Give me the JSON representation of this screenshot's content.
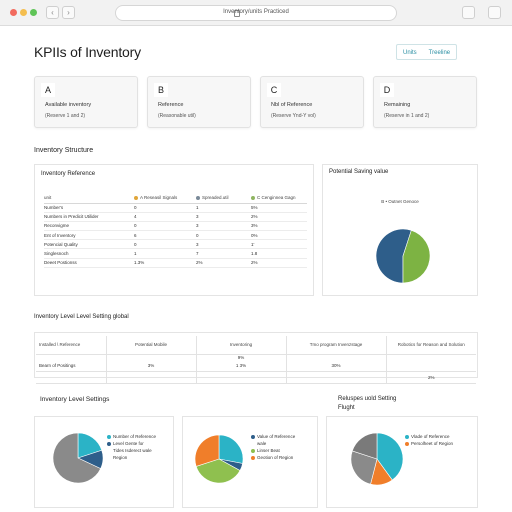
{
  "browser": {
    "url": "Inventory/units Practiced"
  },
  "header": {
    "title": "KPIIs of Inventory",
    "buttons": [
      "Units",
      "Treeline"
    ]
  },
  "kpi_cards": [
    {
      "letter": "A",
      "label": "Available inventory",
      "sub": "(Reserve 1 and 2)"
    },
    {
      "letter": "B",
      "label": "Reference",
      "sub": "(Reasonable util)"
    },
    {
      "letter": "C",
      "label": "Nbl of Reference",
      "sub": "(Reserve Ynd-Y vol)"
    },
    {
      "letter": "D",
      "label": "Remaining",
      "sub": "(Reserve in 1 and 2)"
    }
  ],
  "structure": {
    "section_title": "Inventory Structure",
    "table_panel_title": "Inventory Reference",
    "headers": [
      "unit",
      "A Reseasil Signals",
      "Spreaded.util",
      "C Cenginnea Gagn"
    ],
    "header_colors": [
      "",
      "#e0a63a",
      "#7a8a99",
      "#8fb560"
    ],
    "rows": [
      [
        "Number's",
        "0",
        "1",
        "5%"
      ],
      [
        "Numbers in Predicit Utilider",
        "4",
        "3",
        "2%"
      ],
      [
        "Reconvigme",
        "0",
        "3",
        "3%"
      ],
      [
        "Ent of Inventory",
        "6",
        "0",
        "0%"
      ],
      [
        "Potencial Quality",
        "0",
        "3",
        "1'"
      ],
      [
        "Singlesnoch",
        "1",
        "7",
        "1.8"
      ],
      [
        "Deeet Postionss",
        "1.3%",
        "2%",
        "2%"
      ]
    ],
    "pie_panel_title": "Potential Saving value",
    "pie_caption": "B • Outnet Genoce",
    "pie_colors": [
      "#2e5e8a",
      "#7db343"
    ]
  },
  "level_global": {
    "section_title": "Inventory Level Level Setting global",
    "headers": [
      "Installed \\ Reference",
      "Potential Mobile",
      "Inventoring",
      "Tmo program Invenzstage",
      "Robotics for Reason and Solution"
    ],
    "rows": [
      [
        "",
        "",
        "9%",
        "",
        ""
      ],
      [
        "Bearn of Positings",
        "3%",
        "1 3%",
        "30%",
        ""
      ],
      [
        "",
        "",
        "",
        "",
        "2%"
      ]
    ]
  },
  "level_settings": {
    "section_title": "Inventory Level Settings",
    "right_title_line1": "Reluspes uold Setting",
    "right_title_line2": "Flught",
    "pies": [
      {
        "colors": [
          "#2bb3c6",
          "#2e5e8a",
          "#8a8a8a"
        ],
        "legend": [
          "Number of Reference",
          "Level Gente for",
          "Tides Isderect wale",
          "Region"
        ]
      },
      {
        "colors": [
          "#2bb3c6",
          "#2e5e8a",
          "#8fc04f",
          "#f07e2a"
        ],
        "legend": [
          "Value of Reference",
          "wale",
          "Linser Beat",
          "Geotion of Region"
        ]
      },
      {
        "colors": [
          "#2bb3c6",
          "#f07e2a",
          "#8a8a8a",
          "#7a7a7a"
        ],
        "legend": [
          "Vlade of Reference",
          "Persolheet of Region"
        ]
      }
    ]
  },
  "chart_data": [
    {
      "type": "pie",
      "title": "Potential Saving value",
      "slices": [
        {
          "name": "",
          "value": 0.55
        },
        {
          "name": "",
          "value": 0.45
        }
      ]
    },
    {
      "type": "pie",
      "slices": [
        {
          "name": "Number of Reference",
          "value": 0.2
        },
        {
          "name": "Level Gente for",
          "value": 0.12
        },
        {
          "name": "Tides Isderect wale",
          "value": 0.68
        }
      ]
    },
    {
      "type": "pie",
      "slices": [
        {
          "name": "Value of Reference",
          "value": 0.28
        },
        {
          "name": "wale",
          "value": 0.05
        },
        {
          "name": "Linser Beat",
          "value": 0.37
        },
        {
          "name": "Geotion of Region",
          "value": 0.3
        }
      ]
    },
    {
      "type": "pie",
      "title": "Reluspes uold Setting Flught",
      "slices": [
        {
          "name": "Vlade of Reference",
          "value": 0.4
        },
        {
          "name": "Persolheet of Region",
          "value": 0.14
        },
        {
          "name": "",
          "value": 0.26
        },
        {
          "name": "",
          "value": 0.2
        }
      ]
    }
  ]
}
